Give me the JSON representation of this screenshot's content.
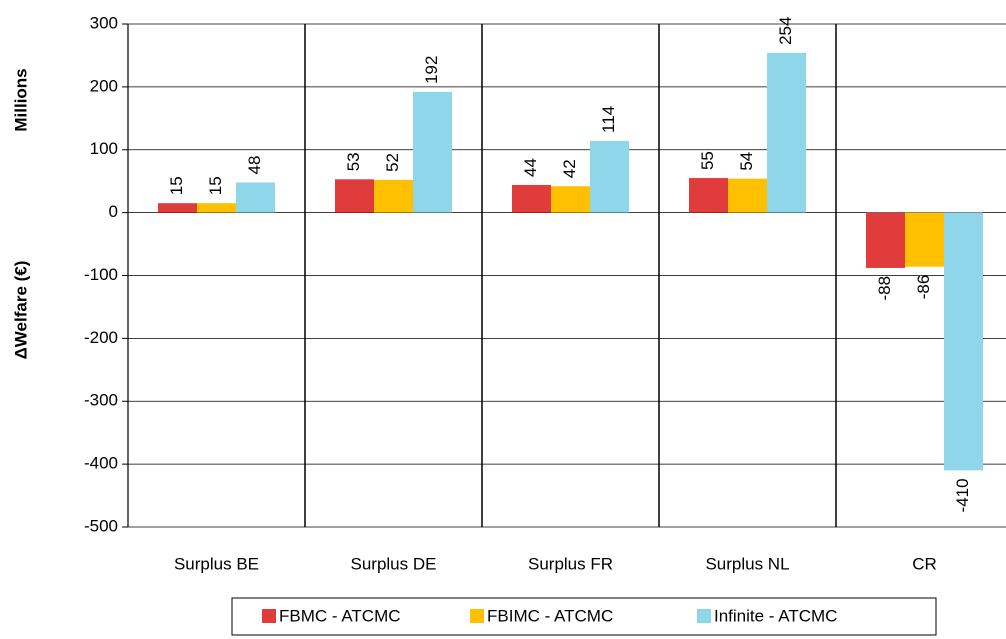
{
  "chart_data": {
    "type": "bar",
    "y_label": "ΔWelfare (€)",
    "y_unit_label": "Millions",
    "categories": [
      "Surplus BE",
      "Surplus DE",
      "Surplus FR",
      "Surplus NL",
      "CR"
    ],
    "series": [
      {
        "name": "FBMC - ATCMC",
        "color": "#e03c3c",
        "values": [
          15,
          53,
          44,
          55,
          -88
        ]
      },
      {
        "name": "FBIMC - ATCMC",
        "color": "#ffc000",
        "values": [
          15,
          52,
          42,
          54,
          -86
        ]
      },
      {
        "name": "Infinite - ATCMC",
        "color": "#8fd6ea",
        "values": [
          48,
          192,
          114,
          254,
          -410
        ]
      }
    ],
    "ylim": [
      -500,
      300
    ],
    "yticks": [
      -500,
      -400,
      -300,
      -200,
      -100,
      0,
      100,
      200,
      300
    ],
    "grid": true
  }
}
